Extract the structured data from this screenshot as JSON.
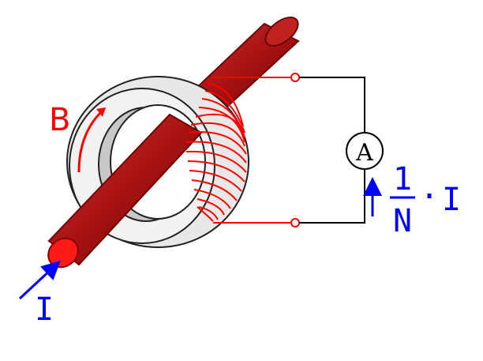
{
  "labels": {
    "field": "B",
    "current": "I",
    "meter": "A",
    "fraction_numerator": "1",
    "fraction_denominator": "N",
    "dot": "·",
    "secondary_current": "I"
  },
  "colors": {
    "conductor": "#b01a1a",
    "conductor_dark": "#6e0000",
    "conductor_end": "#ff1a1a",
    "winding": "#ff0000",
    "field_label": "#ff0000",
    "current_arrow": "#0000ff",
    "ring_fill": "#e6e6e6",
    "ring_inner": "#c8c8c8",
    "wire": "#000000"
  },
  "icons": {
    "meter": "ammeter-circle-icon",
    "field_arrow": "curved-arrow-icon",
    "current_arrow": "straight-arrow-icon"
  }
}
